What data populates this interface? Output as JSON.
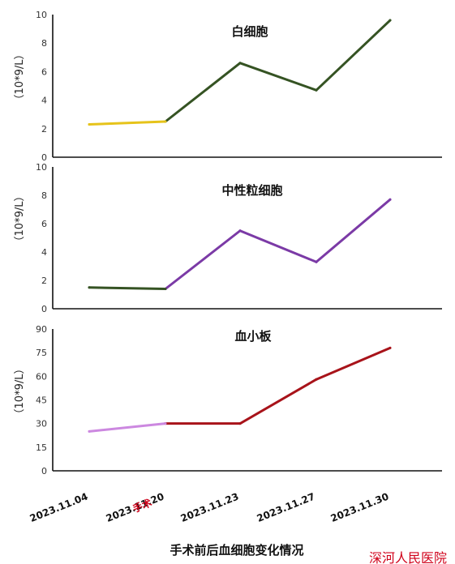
{
  "chart_data": [
    {
      "type": "line",
      "title": "白细胞",
      "ylabel": "（10*9/L）",
      "ylim": [
        0,
        10
      ],
      "yticks": [
        0,
        2,
        4,
        6,
        8,
        10
      ],
      "categories": [
        "2023.11.04",
        "2023.11.20",
        "2023.11.23",
        "2023.11.27",
        "2023.11.30"
      ],
      "values": [
        2.3,
        2.5,
        6.6,
        4.7,
        9.6
      ],
      "segment_colors": [
        "#e6c31a",
        "#355323",
        "#355323",
        "#355323"
      ]
    },
    {
      "type": "line",
      "title": "中性粒细胞",
      "ylabel": "（10*9/L）",
      "ylim": [
        0,
        10
      ],
      "yticks": [
        0,
        2,
        4,
        6,
        8,
        10
      ],
      "categories": [
        "2023.11.04",
        "2023.11.20",
        "2023.11.23",
        "2023.11.27",
        "2023.11.30"
      ],
      "values": [
        1.5,
        1.4,
        5.5,
        3.3,
        7.7
      ],
      "segment_colors": [
        "#355323",
        "#7b3aa6",
        "#7b3aa6",
        "#7b3aa6"
      ]
    },
    {
      "type": "line",
      "title": "血小板",
      "ylabel": "（10*9/L）",
      "ylim": [
        0,
        90
      ],
      "yticks": [
        0,
        15,
        30,
        45,
        60,
        75,
        90
      ],
      "categories": [
        "2023.11.04",
        "2023.11.20",
        "2023.11.23",
        "2023.11.27",
        "2023.11.30"
      ],
      "values": [
        25,
        30,
        30,
        58,
        78
      ],
      "segment_colors": [
        "#cc88e0",
        "#a8131a",
        "#a8131a",
        "#a8131a"
      ]
    }
  ],
  "x_axis": {
    "categories": [
      "2023.11.04",
      "2023.11.20",
      "2023.11.23",
      "2023.11.27",
      "2023.11.30"
    ],
    "surgery_note": "手术",
    "surgery_color": "#d0021b"
  },
  "figure_title": "手术前后血细胞变化情况",
  "watermark": {
    "text": "深河人民医院",
    "color": "#d0021b"
  },
  "colors": {
    "axis": "#111111"
  }
}
